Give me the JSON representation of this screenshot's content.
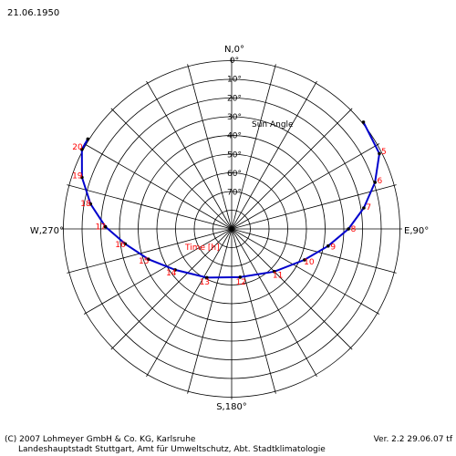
{
  "header": {
    "date": "21.06.1950"
  },
  "footer": {
    "copyright": "(C) 2007 Lohmeyer GmbH & Co. KG, Karlsruhe",
    "version": "Ver. 2.2 29.06.07 tf",
    "agency": "Landeshauptstadt Stuttgart, Amt für Umweltschutz, Abt. Stadtklimatologie"
  },
  "chart_data": {
    "type": "polar-sunpath",
    "compass": {
      "north": "N,0°",
      "east": "E,90°",
      "south": "S,180°",
      "west": "W,270°"
    },
    "elevation_rings_deg": [
      0,
      10,
      20,
      30,
      40,
      50,
      60,
      70
    ],
    "elevation_tick_labels": [
      "0°",
      "10°",
      "20°",
      "30°",
      "40°",
      "50°",
      "60°",
      "70°"
    ],
    "azimuth_spokes_step_deg": 15,
    "axis_label_elevation": "Sun Angle",
    "series_label": "Time [h]",
    "line_color": "#0000cc",
    "label_color": "#ff0000",
    "series": [
      {
        "points": [
          {
            "label": "",
            "azimuth": 51,
            "elevation": 0
          },
          {
            "label": "5",
            "azimuth": 63,
            "elevation": 2
          },
          {
            "label": "6",
            "azimuth": 72,
            "elevation": 10
          },
          {
            "label": "7",
            "azimuth": 81,
            "elevation": 19
          },
          {
            "label": "8",
            "azimuth": 90,
            "elevation": 28
          },
          {
            "label": "9",
            "azimuth": 100,
            "elevation": 38
          },
          {
            "label": "10",
            "azimuth": 113,
            "elevation": 48
          },
          {
            "label": "11",
            "azimuth": 135,
            "elevation": 58
          },
          {
            "label": "12",
            "azimuth": 170,
            "elevation": 64
          },
          {
            "label": "13",
            "azimuth": 207,
            "elevation": 61
          },
          {
            "label": "14",
            "azimuth": 234,
            "elevation": 53
          },
          {
            "label": "15",
            "azimuth": 250,
            "elevation": 43
          },
          {
            "label": "16",
            "azimuth": 262,
            "elevation": 33
          },
          {
            "label": "17",
            "azimuth": 271,
            "elevation": 23
          },
          {
            "label": "18",
            "azimuth": 280,
            "elevation": 14
          },
          {
            "label": "19",
            "azimuth": 289,
            "elevation": 6
          },
          {
            "label": "20",
            "azimuth": 298,
            "elevation": 0
          },
          {
            "label": "",
            "azimuth": 302,
            "elevation": 0
          }
        ]
      }
    ]
  }
}
